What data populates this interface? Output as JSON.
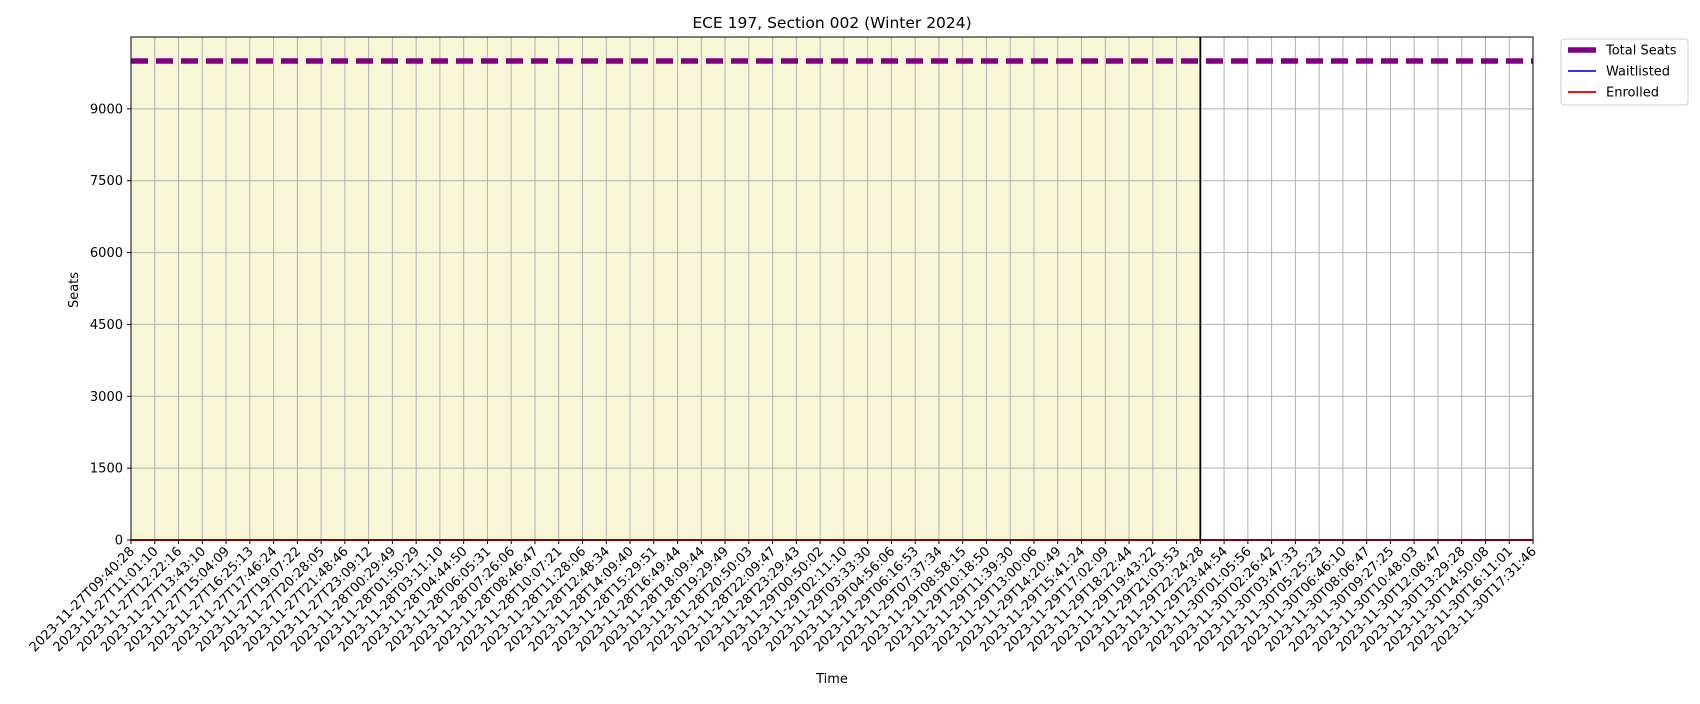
{
  "chart_data": {
    "type": "line",
    "title": "ECE 197, Section 002 (Winter 2024)",
    "xlabel": "Time",
    "ylabel": "Seats",
    "ylim": [
      0,
      10500
    ],
    "yticks": [
      0,
      1500,
      3000,
      4500,
      6000,
      7500,
      9000
    ],
    "grid": true,
    "legend_placement": "outside upper right",
    "x": [
      "2023-11-27T09:40:28",
      "2023-11-27T11:01:10",
      "2023-11-27T12:22:16",
      "2023-11-27T13:43:10",
      "2023-11-27T15:04:09",
      "2023-11-27T16:25:13",
      "2023-11-27T17:46:24",
      "2023-11-27T19:07:22",
      "2023-11-27T20:28:05",
      "2023-11-27T21:48:46",
      "2023-11-27T23:09:12",
      "2023-11-28T00:29:49",
      "2023-11-28T01:50:29",
      "2023-11-28T03:11:10",
      "2023-11-28T04:44:50",
      "2023-11-28T06:05:31",
      "2023-11-28T07:26:06",
      "2023-11-28T08:46:47",
      "2023-11-28T10:07:21",
      "2023-11-28T11:28:06",
      "2023-11-28T12:48:34",
      "2023-11-28T14:09:40",
      "2023-11-28T15:29:51",
      "2023-11-28T16:49:44",
      "2023-11-28T18:09:44",
      "2023-11-28T19:29:49",
      "2023-11-28T20:50:03",
      "2023-11-28T22:09:47",
      "2023-11-28T23:29:43",
      "2023-11-29T00:50:02",
      "2023-11-29T02:11:10",
      "2023-11-29T03:33:30",
      "2023-11-29T04:56:06",
      "2023-11-29T06:16:53",
      "2023-11-29T07:37:34",
      "2023-11-29T08:58:15",
      "2023-11-29T10:18:50",
      "2023-11-29T11:39:30",
      "2023-11-29T13:00:06",
      "2023-11-29T14:20:49",
      "2023-11-29T15:41:24",
      "2023-11-29T17:02:09",
      "2023-11-29T18:22:44",
      "2023-11-29T19:43:22",
      "2023-11-29T21:03:53",
      "2023-11-29T22:24:28",
      "2023-11-29T23:44:54",
      "2023-11-30T01:05:56",
      "2023-11-30T02:26:42",
      "2023-11-30T03:47:33",
      "2023-11-30T05:25:23",
      "2023-11-30T06:46:10",
      "2023-11-30T08:06:47",
      "2023-11-30T09:27:25",
      "2023-11-30T10:48:03",
      "2023-11-30T12:08:47",
      "2023-11-30T13:29:28",
      "2023-11-30T14:50:08",
      "2023-11-30T16:11:01",
      "2023-11-30T17:31:46"
    ],
    "series": [
      {
        "name": "Total Seats",
        "constant_value": 10000,
        "style": "dashed",
        "color": "#800080"
      },
      {
        "name": "Waitlisted",
        "constant_value": 0,
        "style": "solid",
        "color": "#3333ee"
      },
      {
        "name": "Enrolled",
        "constant_value": 0,
        "style": "solid",
        "color": "#ee1111"
      }
    ],
    "shaded_region": {
      "from": "2023-11-27T09:40:28",
      "to": "2023-11-29T22:24:28",
      "color": "#f7f7d7"
    },
    "vertical_marker": {
      "at": "2023-11-29T22:24:28",
      "color": "#000000"
    }
  }
}
